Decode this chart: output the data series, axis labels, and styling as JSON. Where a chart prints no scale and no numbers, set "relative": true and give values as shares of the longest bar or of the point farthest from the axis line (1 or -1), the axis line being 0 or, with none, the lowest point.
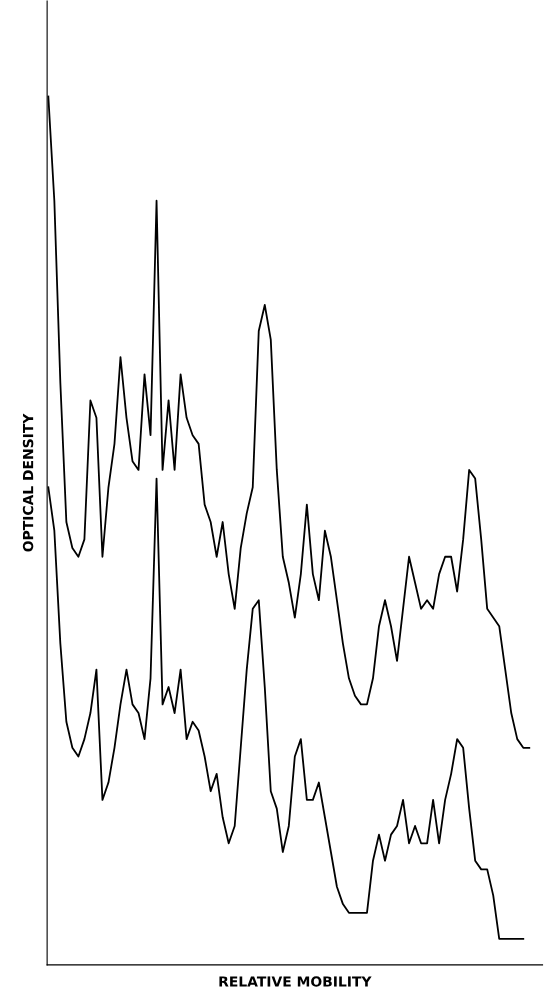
{
  "chart_data": {
    "type": "line",
    "xlabel": "RELATIVE MOBILITY",
    "ylabel": "OPTICAL DENSITY",
    "relative": true,
    "marker": "none",
    "line_style": "solid",
    "tick_labels": false,
    "categories": [
      null,
      null,
      null,
      null,
      null,
      null,
      null,
      null,
      null,
      null,
      null,
      null,
      null,
      null,
      null,
      null,
      null,
      null,
      null,
      null,
      null,
      null,
      null,
      null,
      null,
      null,
      null,
      null,
      null,
      null,
      null,
      null,
      null,
      null,
      null,
      null,
      null,
      null,
      null,
      null,
      null,
      null,
      null,
      null,
      null,
      null,
      null,
      null,
      null,
      null,
      null,
      null,
      null,
      null,
      null,
      null,
      null,
      null,
      null,
      null,
      null,
      null,
      null,
      null,
      null,
      null,
      null,
      null,
      null,
      null,
      null,
      null,
      null,
      null,
      null,
      null,
      null,
      null,
      null,
      null,
      null
    ],
    "series": [
      {
        "color": "#000000",
        "values": [
          1.0,
          0.88,
          0.67,
          0.51,
          0.48,
          0.47,
          0.49,
          0.65,
          0.63,
          0.47,
          0.55,
          0.6,
          0.7,
          0.63,
          0.58,
          0.57,
          0.68,
          0.61,
          0.88,
          0.57,
          0.65,
          0.57,
          0.68,
          0.63,
          0.61,
          0.6,
          0.53,
          0.51,
          0.47,
          0.51,
          0.45,
          0.41,
          0.48,
          0.52,
          0.55,
          0.73,
          0.76,
          0.72,
          0.57,
          0.47,
          0.44,
          0.4,
          0.45,
          0.53,
          0.45,
          0.42,
          0.5,
          0.47,
          0.42,
          0.37,
          0.33,
          0.31,
          0.3,
          0.3,
          0.33,
          0.39,
          0.42,
          0.39,
          0.35,
          0.41,
          0.47,
          0.44,
          0.41,
          0.42,
          0.41,
          0.45,
          0.47,
          0.47,
          0.43,
          0.49,
          0.57,
          0.56,
          0.49,
          0.41,
          0.4,
          0.39,
          0.34,
          0.29,
          0.26,
          0.25,
          0.25
        ]
      },
      {
        "color": "#000000",
        "values": [
          0.55,
          0.5,
          0.37,
          0.28,
          0.25,
          0.24,
          0.26,
          0.29,
          0.34,
          0.19,
          0.21,
          0.25,
          0.3,
          0.34,
          0.3,
          0.29,
          0.26,
          0.33,
          0.56,
          0.3,
          0.32,
          0.29,
          0.34,
          0.26,
          0.28,
          0.27,
          0.24,
          0.2,
          0.22,
          0.17,
          0.14,
          0.16,
          0.25,
          0.34,
          0.41,
          0.42,
          0.32,
          0.2,
          0.18,
          0.13,
          0.16,
          0.24,
          0.26,
          0.19,
          0.19,
          0.21,
          0.17,
          0.13,
          0.09,
          0.07,
          0.06,
          0.06,
          0.06,
          0.06,
          0.12,
          0.15,
          0.12,
          0.15,
          0.16,
          0.19,
          0.14,
          0.16,
          0.14,
          0.14,
          0.19,
          0.14,
          0.19,
          0.22,
          0.26,
          0.25,
          0.18,
          0.12,
          0.11,
          0.11,
          0.08,
          0.03,
          0.03,
          0.03,
          0.03,
          0.03,
          null
        ]
      }
    ]
  }
}
